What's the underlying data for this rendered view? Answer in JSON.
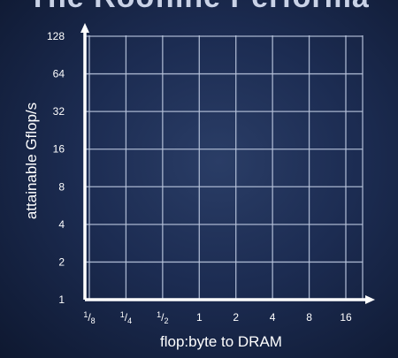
{
  "page": {
    "title_fragment": "The Roofline Performa"
  },
  "chart_data": {
    "type": "line",
    "title": "",
    "xlabel": "flop:byte to DRAM",
    "ylabel": "attainable Gflop/s",
    "xscale": "log2",
    "yscale": "log2",
    "xlim": [
      0.125,
      16
    ],
    "ylim": [
      1,
      128
    ],
    "x_ticks": [
      0.125,
      0.25,
      0.5,
      1,
      2,
      4,
      8,
      16
    ],
    "x_tick_labels": [
      {
        "num": "1",
        "den": "8"
      },
      {
        "num": "1",
        "den": "4"
      },
      {
        "num": "1",
        "den": "2"
      },
      {
        "label": "1"
      },
      {
        "label": "2"
      },
      {
        "label": "4"
      },
      {
        "label": "8"
      },
      {
        "label": "16"
      }
    ],
    "y_ticks": [
      1,
      2,
      4,
      8,
      16,
      32,
      64,
      128
    ],
    "y_tick_labels": [
      "1",
      "2",
      "4",
      "8",
      "16",
      "32",
      "64",
      "128"
    ],
    "grid": true,
    "series": [],
    "colors": {
      "axis": "#ffffff",
      "grid": "#b8c4dc",
      "text": "#ffffff"
    }
  }
}
